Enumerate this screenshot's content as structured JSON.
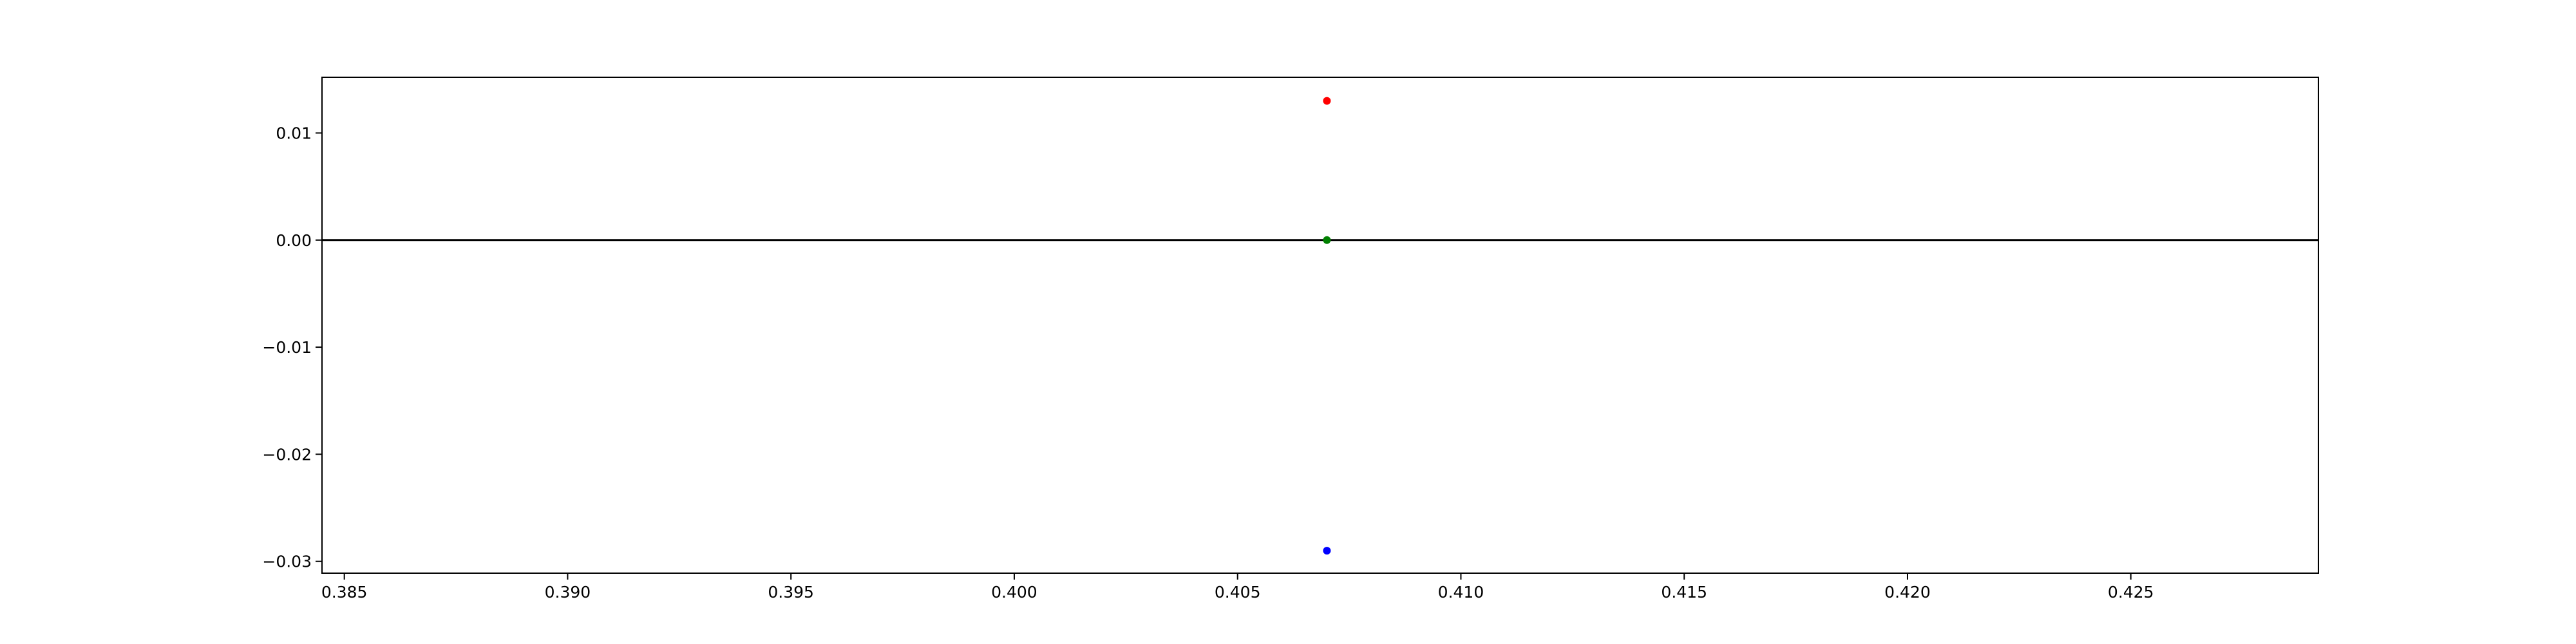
{
  "chart_data": {
    "type": "scatter",
    "title": "",
    "xlabel": "",
    "ylabel": "",
    "xlim": [
      0.3845,
      0.4292
    ],
    "ylim": [
      -0.0311,
      0.0152
    ],
    "grid": false,
    "x_ticks": [
      0.385,
      0.39,
      0.395,
      0.4,
      0.405,
      0.41,
      0.415,
      0.42,
      0.425
    ],
    "x_tick_labels": [
      "0.385",
      "0.390",
      "0.395",
      "0.400",
      "0.405",
      "0.410",
      "0.415",
      "0.420",
      "0.425"
    ],
    "y_ticks": [
      0.01,
      0.0,
      -0.01,
      -0.02,
      -0.03
    ],
    "y_tick_labels": [
      "0.01",
      "0.00",
      "−0.01",
      "−0.02",
      "−0.03"
    ],
    "reference_line": {
      "y": 0.0,
      "color": "#000000"
    },
    "points": [
      {
        "x": 0.407,
        "y": 0.013,
        "color": "#ff0000"
      },
      {
        "x": 0.407,
        "y": 0.0,
        "color": "#008000"
      },
      {
        "x": 0.407,
        "y": -0.029,
        "color": "#0000ff"
      }
    ]
  }
}
